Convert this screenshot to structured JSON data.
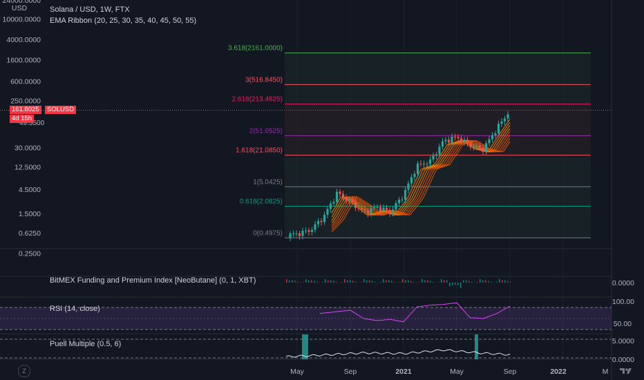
{
  "header": {
    "title": "Solana / USD, 1W, FTX",
    "indicator": "EMA Ribbon (20, 25, 30, 35, 40, 45, 50, 55)"
  },
  "y_axis": {
    "labels": [
      "24000.0000",
      "10000.0000",
      "4000.0000",
      "1600.0000",
      "600.0000",
      "250.0000",
      "30.0000",
      "12.5000",
      "4.5000",
      "1.5000",
      "0.6250",
      "0.2500"
    ],
    "top_label": "USD"
  },
  "price_badge": {
    "price": "161.8025",
    "countdown": "4d 15h",
    "symbol": "SOLUSD",
    "partial_label": "49.3500"
  },
  "fib_levels": [
    {
      "label": "3.618(2161.0000)",
      "color": "#4caf50"
    },
    {
      "label": "3(516.8450)",
      "color": "#f7525f"
    },
    {
      "label": "2.618(213.4625)",
      "color": "#e91e63"
    },
    {
      "label": "2(51.0525)",
      "color": "#9c27b0"
    },
    {
      "label": "1.618(21.0850)",
      "color": "#f7525f"
    },
    {
      "label": "1(5.0425)",
      "color": "#787b86"
    },
    {
      "label": "0.618(2.0825)",
      "color": "#089981"
    },
    {
      "label": "0(0.4975)",
      "color": "#787b86"
    }
  ],
  "panes": {
    "bitmex": {
      "title": "BitMEX Funding and Premium Index [NeoButane] (0, 1, XBT)",
      "value": "0.0000"
    },
    "rsi": {
      "title": "RSI (14, close)",
      "upper": "100.00",
      "mid": "50.00"
    },
    "puell": {
      "title": "Puell Multiple (0.5, 6)",
      "upper": "5.0000",
      "lower": "0.0000"
    }
  },
  "x_axis": {
    "labels": [
      "May",
      "Sep",
      "2021",
      "May",
      "Sep",
      "2022",
      "M"
    ]
  },
  "timezone_button": "Z",
  "colors": {
    "up": "#26a69a",
    "down": "#ef5350",
    "rsi": "#e040fb",
    "puell_bar": "#26a69a",
    "ribbon": "#f57c00"
  },
  "chart_data": [
    {
      "type": "candlestick",
      "title": "Solana / USD, 1W, FTX",
      "scale": "log",
      "ylim": [
        0.2,
        24000
      ],
      "x": [
        "2020-04",
        "2020-05",
        "2020-06",
        "2020-07",
        "2020-08",
        "2020-09",
        "2020-10",
        "2020-11",
        "2020-12",
        "2021-01",
        "2021-02",
        "2021-03",
        "2021-04",
        "2021-05",
        "2021-06",
        "2021-07",
        "2021-08",
        "2021-09"
      ],
      "close": [
        0.55,
        0.6,
        0.7,
        1.3,
        3.8,
        2.6,
        1.6,
        2.0,
        1.6,
        3.5,
        13,
        16,
        40,
        48,
        33,
        28,
        70,
        161.8
      ],
      "last_price": 161.8025,
      "fibonacci": [
        {
          "ratio": 3.618,
          "price": 2161.0
        },
        {
          "ratio": 3,
          "price": 516.845
        },
        {
          "ratio": 2.618,
          "price": 213.4625
        },
        {
          "ratio": 2,
          "price": 51.0525
        },
        {
          "ratio": 1.618,
          "price": 21.085
        },
        {
          "ratio": 1,
          "price": 5.0425
        },
        {
          "ratio": 0.618,
          "price": 2.0825
        },
        {
          "ratio": 0,
          "price": 0.4975
        }
      ]
    },
    {
      "type": "line",
      "title": "RSI (14, close)",
      "ylim": [
        50,
        100
      ],
      "x": [
        "2020-08",
        "2020-09",
        "2020-10",
        "2020-11",
        "2020-12",
        "2021-01",
        "2021-02",
        "2021-03",
        "2021-04",
        "2021-05",
        "2021-06",
        "2021-07",
        "2021-08",
        "2021-09"
      ],
      "values": [
        72,
        80,
        60,
        55,
        58,
        52,
        88,
        92,
        94,
        98,
        62,
        60,
        72,
        90
      ]
    },
    {
      "type": "line",
      "title": "Puell Multiple (0.5, 6)",
      "ylim": [
        0,
        5
      ],
      "x": [
        "2020-04",
        "2020-07",
        "2020-10",
        "2021-01",
        "2021-04",
        "2021-07",
        "2021-09"
      ],
      "values": [
        0.3,
        0.8,
        1.4,
        1.2,
        2.2,
        1.3,
        0.9
      ]
    }
  ]
}
